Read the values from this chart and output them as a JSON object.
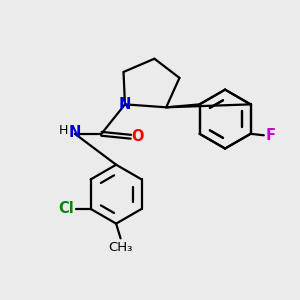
{
  "background_color": "#ebebeb",
  "bond_color": "#000000",
  "N_color": "#0000cc",
  "O_color": "#ff0000",
  "F_color": "#cc00cc",
  "Cl_color": "#008800",
  "line_width": 1.6,
  "font_size": 10.5,
  "figsize": [
    3.0,
    3.0
  ],
  "dpi": 100,
  "xlim": [
    0,
    10
  ],
  "ylim": [
    0,
    10
  ]
}
